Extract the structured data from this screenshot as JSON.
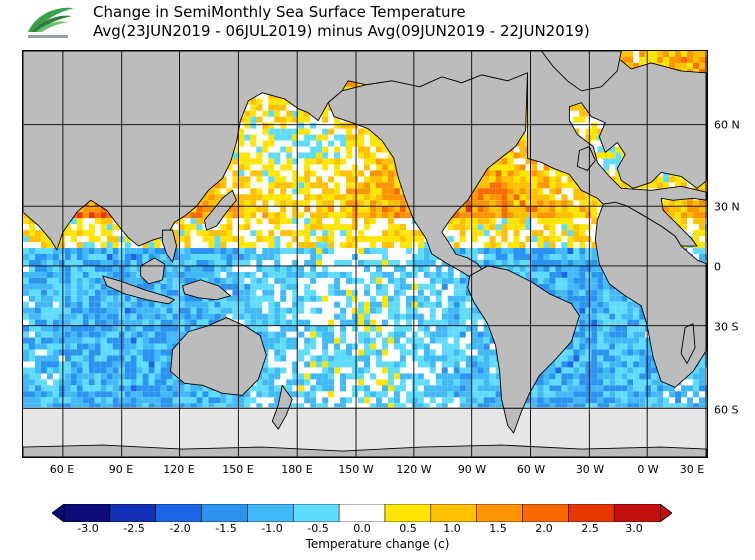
{
  "title": {
    "line1": "Change in SemiMonthly Sea Surface Temperature",
    "line2": "Avg(23JUN2019 - 06JUL2019) minus Avg(09JUN2019 - 22JUN2019)"
  },
  "map": {
    "longitude_labels": [
      "60 E",
      "90 E",
      "120 E",
      "150 E",
      "180 E",
      "150 W",
      "120 W",
      "90 W",
      "60 W",
      "30 W",
      "0 W",
      "30 E"
    ],
    "latitude_labels": [
      "60 N",
      "30 N",
      "0",
      "30 S",
      "60 S"
    ],
    "colors": {
      "land": "#bcbcbc",
      "sea_ice": "#e6e6e6",
      "coast": "#000000"
    }
  },
  "colorbar": {
    "title": "Temperature change  (c)",
    "tick_labels": [
      "-3.0",
      "-2.5",
      "-2.0",
      "-1.5",
      "-1.0",
      "-0.5",
      "0.0",
      "0.5",
      "1.0",
      "1.5",
      "2.0",
      "2.5",
      "3.0"
    ],
    "colors": [
      "#0b0b7a",
      "#1230b8",
      "#1e64e6",
      "#2a92ef",
      "#41b9f7",
      "#5fdcfb",
      "#ffffff",
      "#ffe600",
      "#ffc000",
      "#ff9400",
      "#f86a00",
      "#e63800",
      "#c40d0d"
    ]
  }
}
